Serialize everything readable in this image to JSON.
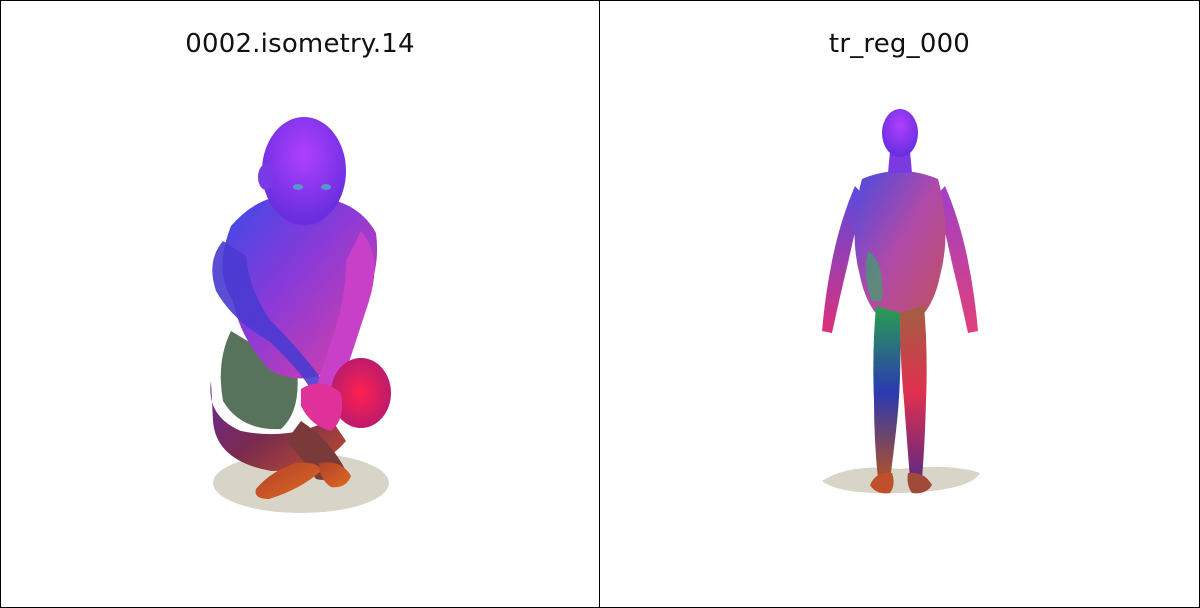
{
  "panels": [
    {
      "title": "0002.isometry.14"
    },
    {
      "title": "tr_reg_000"
    }
  ]
}
